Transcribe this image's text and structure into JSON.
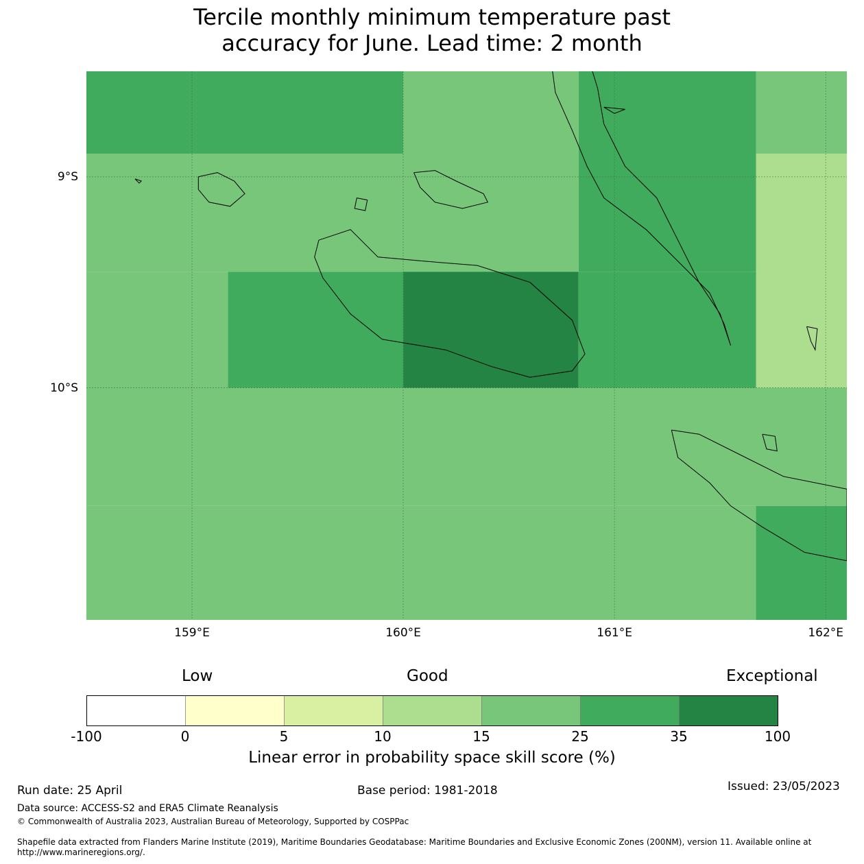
{
  "title_line1": "Tercile monthly minimum temperature past",
  "title_line2": "accuracy for June. Lead time: 2 month",
  "map": {
    "lon_range": [
      158.5,
      162.1
    ],
    "lat_range": [
      -11.1,
      -8.5
    ],
    "lat_ticks": [
      {
        "value": -9,
        "label": "9°S"
      },
      {
        "value": -10,
        "label": "10°S"
      }
    ],
    "lon_ticks": [
      {
        "value": 159,
        "label": "159°E"
      },
      {
        "value": 160,
        "label": "160°E"
      },
      {
        "value": 161,
        "label": "161°E"
      },
      {
        "value": 162,
        "label": "162°E"
      }
    ],
    "cells": [
      {
        "lon0": 158.5,
        "lon1": 160.0,
        "lat0": -8.5,
        "lat1": -8.89,
        "color": "#41ab5d"
      },
      {
        "lon0": 160.0,
        "lon1": 160.83,
        "lat0": -8.5,
        "lat1": -8.89,
        "color": "#78c679"
      },
      {
        "lon0": 160.83,
        "lon1": 161.67,
        "lat0": -8.5,
        "lat1": -8.89,
        "color": "#41ab5d"
      },
      {
        "lon0": 161.67,
        "lon1": 162.1,
        "lat0": -8.5,
        "lat1": -8.89,
        "color": "#78c679"
      },
      {
        "lon0": 158.5,
        "lon1": 160.83,
        "lat0": -8.89,
        "lat1": -9.45,
        "color": "#78c679"
      },
      {
        "lon0": 160.83,
        "lon1": 161.67,
        "lat0": -8.89,
        "lat1": -9.45,
        "color": "#41ab5d"
      },
      {
        "lon0": 161.67,
        "lon1": 162.1,
        "lat0": -8.89,
        "lat1": -10.0,
        "color": "#addd8e"
      },
      {
        "lon0": 158.5,
        "lon1": 159.17,
        "lat0": -9.45,
        "lat1": -10.0,
        "color": "#78c679"
      },
      {
        "lon0": 159.17,
        "lon1": 160.0,
        "lat0": -9.45,
        "lat1": -10.0,
        "color": "#41ab5d"
      },
      {
        "lon0": 160.0,
        "lon1": 160.83,
        "lat0": -9.45,
        "lat1": -10.0,
        "color": "#238443"
      },
      {
        "lon0": 160.83,
        "lon1": 161.67,
        "lat0": -9.45,
        "lat1": -10.0,
        "color": "#41ab5d"
      },
      {
        "lon0": 158.5,
        "lon1": 162.1,
        "lat0": -10.0,
        "lat1": -10.56,
        "color": "#78c679"
      },
      {
        "lon0": 158.5,
        "lon1": 161.67,
        "lat0": -10.56,
        "lat1": -11.1,
        "color": "#78c679"
      },
      {
        "lon0": 161.67,
        "lon1": 162.1,
        "lat0": -10.56,
        "lat1": -11.1,
        "color": "#41ab5d"
      }
    ],
    "coastlines": [
      {
        "name": "guadalcanal",
        "pts": [
          [
            159.6,
            -9.3
          ],
          [
            159.75,
            -9.25
          ],
          [
            159.88,
            -9.38
          ],
          [
            160.1,
            -9.4
          ],
          [
            160.35,
            -9.42
          ],
          [
            160.6,
            -9.5
          ],
          [
            160.8,
            -9.68
          ],
          [
            160.86,
            -9.84
          ],
          [
            160.8,
            -9.92
          ],
          [
            160.6,
            -9.95
          ],
          [
            160.42,
            -9.9
          ],
          [
            160.2,
            -9.82
          ],
          [
            159.9,
            -9.77
          ],
          [
            159.75,
            -9.65
          ],
          [
            159.62,
            -9.48
          ],
          [
            159.58,
            -9.38
          ],
          [
            159.6,
            -9.3
          ]
        ]
      },
      {
        "name": "malaita",
        "pts": [
          [
            160.7,
            -8.45
          ],
          [
            160.72,
            -8.6
          ],
          [
            160.8,
            -8.78
          ],
          [
            160.87,
            -8.95
          ],
          [
            160.95,
            -9.1
          ],
          [
            161.15,
            -9.25
          ],
          [
            161.3,
            -9.4
          ],
          [
            161.45,
            -9.55
          ],
          [
            161.52,
            -9.7
          ],
          [
            161.55,
            -9.8
          ],
          [
            161.5,
            -9.65
          ],
          [
            161.4,
            -9.5
          ],
          [
            161.3,
            -9.3
          ],
          [
            161.2,
            -9.1
          ],
          [
            161.05,
            -8.95
          ],
          [
            160.95,
            -8.75
          ],
          [
            160.92,
            -8.58
          ],
          [
            160.88,
            -8.45
          ]
        ]
      },
      {
        "name": "florida-islands",
        "pts": [
          [
            160.05,
            -8.98
          ],
          [
            160.15,
            -8.97
          ],
          [
            160.25,
            -9.02
          ],
          [
            160.38,
            -9.08
          ],
          [
            160.4,
            -9.12
          ],
          [
            160.28,
            -9.15
          ],
          [
            160.15,
            -9.12
          ],
          [
            160.08,
            -9.05
          ],
          [
            160.05,
            -8.98
          ]
        ]
      },
      {
        "name": "russell-islands",
        "pts": [
          [
            159.03,
            -9.0
          ],
          [
            159.12,
            -8.98
          ],
          [
            159.2,
            -9.02
          ],
          [
            159.25,
            -9.08
          ],
          [
            159.18,
            -9.14
          ],
          [
            159.08,
            -9.12
          ],
          [
            159.03,
            -9.06
          ],
          [
            159.03,
            -9.0
          ]
        ]
      },
      {
        "name": "makira",
        "pts": [
          [
            161.27,
            -10.2
          ],
          [
            161.4,
            -10.22
          ],
          [
            161.6,
            -10.32
          ],
          [
            161.8,
            -10.42
          ],
          [
            162.1,
            -10.48
          ],
          [
            162.1,
            -10.82
          ],
          [
            161.9,
            -10.78
          ],
          [
            161.7,
            -10.66
          ],
          [
            161.55,
            -10.56
          ],
          [
            161.45,
            -10.45
          ],
          [
            161.3,
            -10.33
          ],
          [
            161.27,
            -10.2
          ]
        ]
      },
      {
        "name": "small-island-1",
        "pts": [
          [
            160.95,
            -8.67
          ],
          [
            161.05,
            -8.68
          ],
          [
            161.0,
            -8.7
          ],
          [
            160.95,
            -8.67
          ]
        ]
      },
      {
        "name": "small-island-2",
        "pts": [
          [
            159.78,
            -9.1
          ],
          [
            159.83,
            -9.11
          ],
          [
            159.82,
            -9.16
          ],
          [
            159.77,
            -9.15
          ],
          [
            159.78,
            -9.1
          ]
        ]
      },
      {
        "name": "small-island-3",
        "pts": [
          [
            161.91,
            -9.71
          ],
          [
            161.96,
            -9.72
          ],
          [
            161.95,
            -9.82
          ],
          [
            161.93,
            -9.78
          ],
          [
            161.91,
            -9.71
          ]
        ]
      },
      {
        "name": "ulawa",
        "pts": [
          [
            161.7,
            -10.22
          ],
          [
            161.76,
            -10.23
          ],
          [
            161.77,
            -10.3
          ],
          [
            161.72,
            -10.29
          ],
          [
            161.7,
            -10.22
          ]
        ]
      },
      {
        "name": "small-island-4",
        "pts": [
          [
            158.73,
            -9.01
          ],
          [
            158.76,
            -9.02
          ],
          [
            158.75,
            -9.03
          ],
          [
            158.73,
            -9.01
          ]
        ]
      }
    ]
  },
  "colorbar": {
    "category_labels": [
      "Low",
      "Good",
      "Exceptional"
    ],
    "bins": [
      {
        "from": "-100",
        "to": "0",
        "color": "#ffffff"
      },
      {
        "from": "0",
        "to": "5",
        "color": "#ffffcc"
      },
      {
        "from": "5",
        "to": "10",
        "color": "#d9f0a3"
      },
      {
        "from": "10",
        "to": "15",
        "color": "#addd8e"
      },
      {
        "from": "15",
        "to": "25",
        "color": "#78c679"
      },
      {
        "from": "25",
        "to": "35",
        "color": "#41ab5d"
      },
      {
        "from": "35",
        "to": "100",
        "color": "#238443"
      }
    ],
    "tick_labels": [
      "-100",
      "0",
      "5",
      "10",
      "15",
      "25",
      "35",
      "100"
    ],
    "label": "Linear error in probability space skill score (%)"
  },
  "footer": {
    "run_date": "Run date: 25 April",
    "base_period": "Base period: 1981-2018",
    "issued": "Issued: 23/05/2023",
    "data_source": "Data source: ACCESS-S2 and ERA5 Climate Reanalysis",
    "copyright": "© Commonwealth of Australia 2023, Australian Bureau of Meteorology, Supported by COSPPac",
    "shapefile_line1": "Shapefile data extracted from Flanders Marine Institute (2019), Maritime Boundaries Geodatabase: Maritime Boundaries and Exclusive Economic Zones (200NM), version 11. Available online at",
    "shapefile_line2": "http://www.marineregions.org/."
  }
}
